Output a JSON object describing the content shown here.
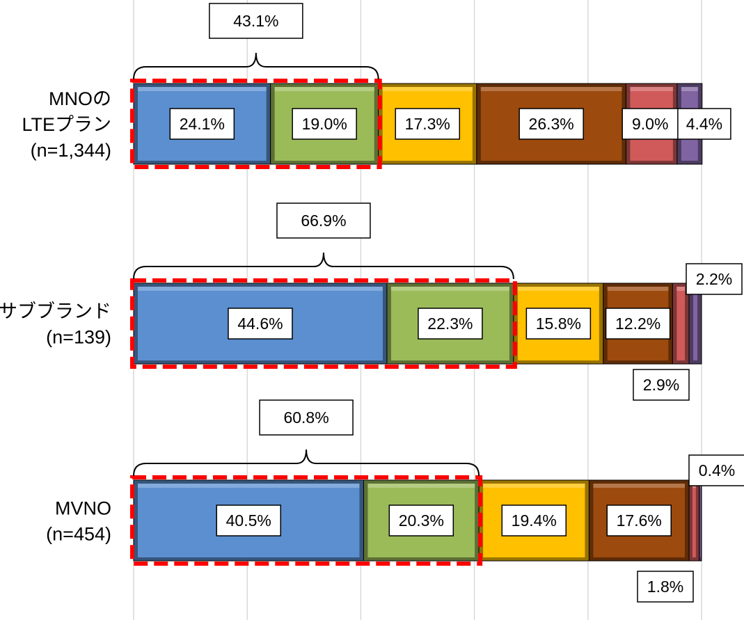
{
  "chart_data": {
    "type": "bar",
    "orientation": "horizontal",
    "stacked": true,
    "xlim": [
      0,
      100
    ],
    "grid": true,
    "colors": [
      "#5b8fcf",
      "#9bbb59",
      "#ffc000",
      "#9c4a0d",
      "#d05a5a",
      "#8064a2"
    ],
    "categories": [
      {
        "label": [
          "MNOの",
          "LTEプラン",
          "(n=1,344)"
        ],
        "values": [
          24.1,
          19.0,
          17.3,
          26.3,
          9.0,
          4.4
        ],
        "labels": [
          "24.1%",
          "19.0%",
          "17.3%",
          "26.3%",
          "9.0%",
          "4.4%"
        ],
        "bracket": "43.1%"
      },
      {
        "label": [
          "サブブランド",
          "(n=139)"
        ],
        "values": [
          44.6,
          22.3,
          15.8,
          12.2,
          2.9,
          2.2
        ],
        "labels": [
          "44.6%",
          "22.3%",
          "15.8%",
          "12.2%",
          "2.9%",
          "2.2%"
        ],
        "bracket": "66.9%"
      },
      {
        "label": [
          "MVNO",
          "(n=454)"
        ],
        "values": [
          40.5,
          20.3,
          19.4,
          17.6,
          1.8,
          0.4
        ],
        "labels": [
          "40.5%",
          "20.3%",
          "19.4%",
          "17.6%",
          "1.8%",
          "0.4%"
        ],
        "bracket": "60.8%"
      }
    ]
  }
}
